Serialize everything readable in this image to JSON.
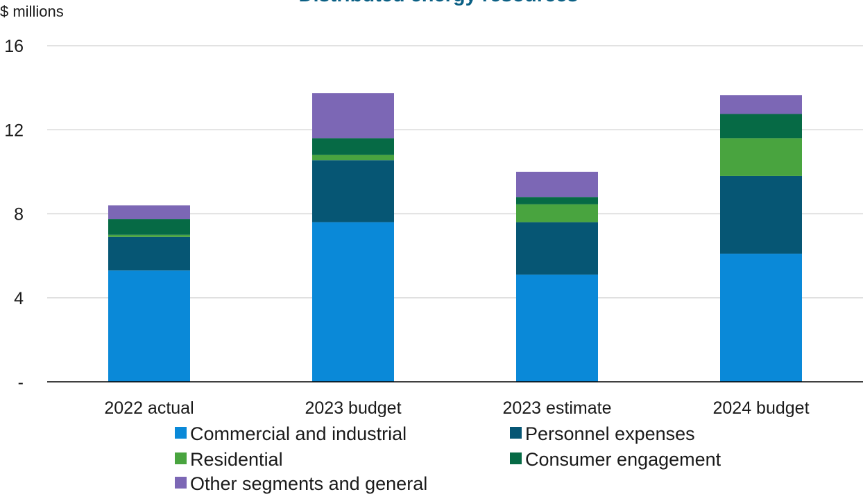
{
  "chart_data": {
    "type": "bar",
    "stacked": true,
    "title": "Distributed energy resources",
    "ylabel": "$ millions",
    "xlabel": "",
    "ylim": [
      0,
      16
    ],
    "yticks": [
      0,
      4,
      8,
      12,
      16
    ],
    "ytick_labels": [
      "-",
      "4",
      "8",
      "12",
      "16"
    ],
    "grid": true,
    "legend": "bottom",
    "categories": [
      "2022 actual",
      "2023 budget",
      "2023 estimate",
      "2024 budget"
    ],
    "series": [
      {
        "name": "Commercial and industrial",
        "color": "#0a89d8",
        "values": [
          5.3,
          7.6,
          5.1,
          6.1
        ]
      },
      {
        "name": "Personnel expenses",
        "color": "#065674",
        "values": [
          1.6,
          2.95,
          2.5,
          3.7
        ]
      },
      {
        "name": "Residential",
        "color": "#49a43f",
        "values": [
          0.1,
          0.25,
          0.85,
          1.8
        ]
      },
      {
        "name": "Consumer engagement",
        "color": "#066a45",
        "values": [
          0.75,
          0.8,
          0.35,
          1.15
        ]
      },
      {
        "name": "Other segments and general",
        "color": "#7c67b5",
        "values": [
          0.65,
          2.15,
          1.2,
          0.9
        ]
      }
    ]
  }
}
